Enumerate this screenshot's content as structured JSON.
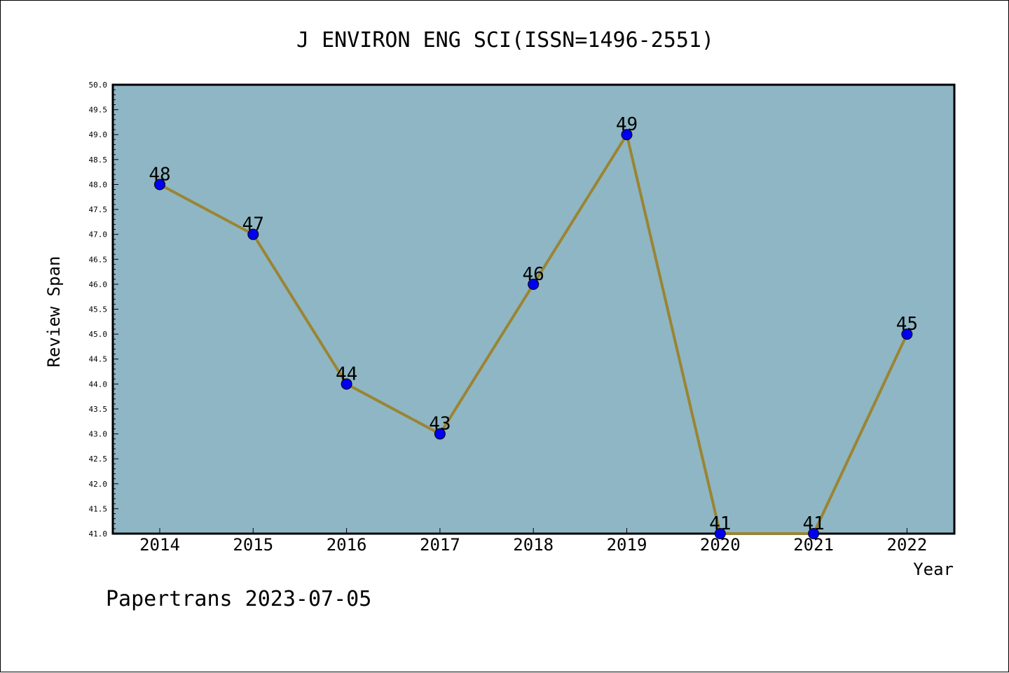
{
  "footer_text": "Papertrans 2023-07-05",
  "chart_data": {
    "type": "line",
    "title": "J ENVIRON ENG SCI(ISSN=1496-2551)",
    "xlabel": "Year",
    "ylabel": "Review Span",
    "categories": [
      "2014",
      "2015",
      "2016",
      "2017",
      "2018",
      "2019",
      "2020",
      "2021",
      "2022"
    ],
    "values": [
      48,
      47,
      44,
      43,
      46,
      49,
      41,
      41,
      45
    ],
    "data_labels": [
      "48",
      "47",
      "44",
      "43",
      "46",
      "49",
      "41",
      "41",
      "45"
    ],
    "ylim": [
      41.0,
      50.0
    ],
    "yticks": [
      "41.0",
      "41.5",
      "42.0",
      "42.5",
      "43.0",
      "43.5",
      "44.0",
      "44.5",
      "45.0",
      "45.5",
      "46.0",
      "46.5",
      "47.0",
      "47.5",
      "48.0",
      "48.5",
      "49.0",
      "49.5",
      "50.0"
    ],
    "grid": false,
    "colors": {
      "plot_background": "#8fb6c4",
      "line": "#9a8534",
      "marker": "#0000ee"
    }
  }
}
